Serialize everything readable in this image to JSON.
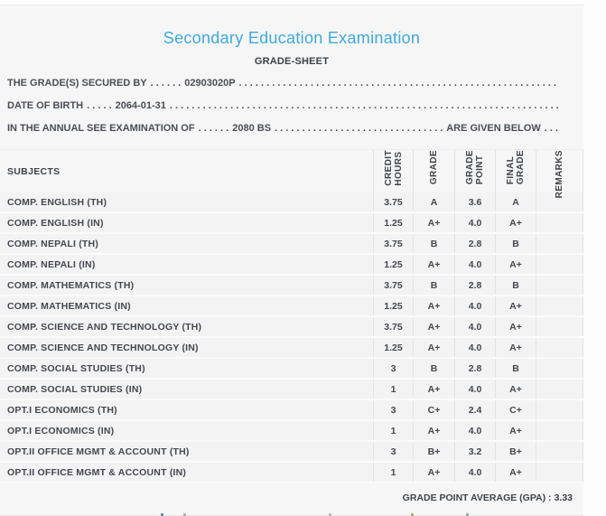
{
  "colors": {
    "title_accent": "#3caade",
    "body_text": "#44484d",
    "panel_background": "#f6f6f7"
  },
  "header": {
    "title": "Secondary Education Examination",
    "subtitle": "GRADE-SHEET"
  },
  "info": {
    "dots_fill": ". . . . . . . . . . . . . . . . . . . . . . . . . . . . . . . . . . . . . . . . . . . . . . . . . . . . . . . . . . . . . . . . . . . . . . . . . . . . . . . .",
    "line1": {
      "label": "THE GRADE(S) SECURED BY",
      "dots1": ". . . . . .",
      "value": "02903020P"
    },
    "line2": {
      "label": "DATE OF BIRTH",
      "dots1": ". . . . .",
      "value": "2064-01-31"
    },
    "line3": {
      "label": "IN THE ANNUAL SEE EXAMINATION OF",
      "dots1": ". . . . . .",
      "value": "2080 BS",
      "suffix": "ARE GIVEN BELOW",
      "dots3": ". . ."
    }
  },
  "table": {
    "headers": {
      "subjects": "SUBJECTS",
      "credit_hours": "CREDIT\nHOURS",
      "grade": "GRADE",
      "grade_point": "GRADE\nPOINT",
      "final_grade": "FINAL\nGRADE",
      "remarks": "REMARKS"
    },
    "rows": [
      {
        "subject": "COMP. ENGLISH (TH)",
        "credit": "3.75",
        "grade": "A",
        "point": "3.6",
        "final": "A",
        "remarks": ""
      },
      {
        "subject": "COMP. ENGLISH (IN)",
        "credit": "1.25",
        "grade": "A+",
        "point": "4.0",
        "final": "A+",
        "remarks": ""
      },
      {
        "subject": "COMP. NEPALI (TH)",
        "credit": "3.75",
        "grade": "B",
        "point": "2.8",
        "final": "B",
        "remarks": ""
      },
      {
        "subject": "COMP. NEPALI (IN)",
        "credit": "1.25",
        "grade": "A+",
        "point": "4.0",
        "final": "A+",
        "remarks": ""
      },
      {
        "subject": "COMP. MATHEMATICS (TH)",
        "credit": "3.75",
        "grade": "B",
        "point": "2.8",
        "final": "B",
        "remarks": ""
      },
      {
        "subject": "COMP. MATHEMATICS (IN)",
        "credit": "1.25",
        "grade": "A+",
        "point": "4.0",
        "final": "A+",
        "remarks": ""
      },
      {
        "subject": "COMP. SCIENCE AND TECHNOLOGY (TH)",
        "credit": "3.75",
        "grade": "A+",
        "point": "4.0",
        "final": "A+",
        "remarks": ""
      },
      {
        "subject": "COMP. SCIENCE AND TECHNOLOGY (IN)",
        "credit": "1.25",
        "grade": "A+",
        "point": "4.0",
        "final": "A+",
        "remarks": ""
      },
      {
        "subject": "COMP. SOCIAL STUDIES (TH)",
        "credit": "3",
        "grade": "B",
        "point": "2.8",
        "final": "B",
        "remarks": ""
      },
      {
        "subject": "COMP. SOCIAL STUDIES (IN)",
        "credit": "1",
        "grade": "A+",
        "point": "4.0",
        "final": "A+",
        "remarks": ""
      },
      {
        "subject": "OPT.I ECONOMICS (TH)",
        "credit": "3",
        "grade": "C+",
        "point": "2.4",
        "final": "C+",
        "remarks": ""
      },
      {
        "subject": "OPT.I ECONOMICS (IN)",
        "credit": "1",
        "grade": "A+",
        "point": "4.0",
        "final": "A+",
        "remarks": ""
      },
      {
        "subject": "OPT.II OFFICE MGMT & ACCOUNT (TH)",
        "credit": "3",
        "grade": "B+",
        "point": "3.2",
        "final": "B+",
        "remarks": ""
      },
      {
        "subject": "OPT.II OFFICE MGMT & ACCOUNT (IN)",
        "credit": "1",
        "grade": "A+",
        "point": "4.0",
        "final": "A+",
        "remarks": ""
      }
    ]
  },
  "summary": {
    "gpa_label": "GRADE POINT AVERAGE (GPA) :",
    "gpa_value": "3.33"
  }
}
